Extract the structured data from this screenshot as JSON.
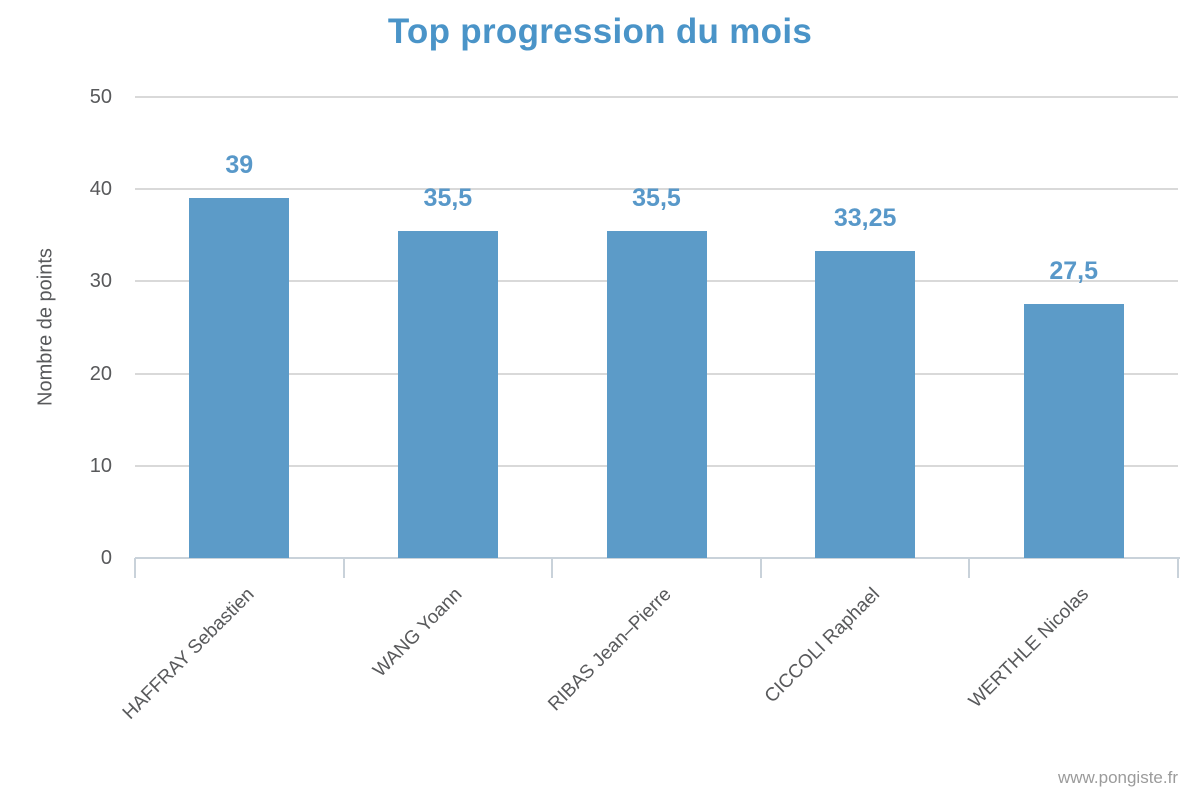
{
  "page": {
    "watermark": "www.pongiste.fr"
  },
  "chart_data": {
    "type": "bar",
    "title": "Top progression du mois",
    "ylabel": "Nombre de points",
    "xlabel": "",
    "categories": [
      "HAFFRAY Sebastien",
      "WANG Yoann",
      "RIBAS Jean–Pierre",
      "CICCOLI Raphael",
      "WERTHLE Nicolas"
    ],
    "values": [
      39,
      35.5,
      35.5,
      33.25,
      27.5
    ],
    "value_labels": [
      "39",
      "35,5",
      "35,5",
      "33,25",
      "27,5"
    ],
    "ylim": [
      0,
      50
    ],
    "yticks": [
      0,
      10,
      20,
      30,
      40,
      50
    ],
    "grid": true,
    "legend": false,
    "colors": {
      "bar": "#5C9BC8",
      "title": "#4A94C8",
      "value_label": "#5898C9",
      "axis_text": "#58595B",
      "gridline": "#D9D9D9",
      "axis_line": "#C9D2DA",
      "watermark": "#9B9B9B"
    }
  }
}
